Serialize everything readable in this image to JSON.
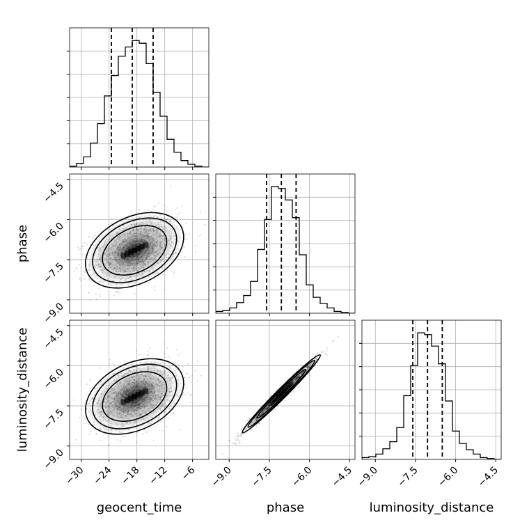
{
  "chart_data": {
    "type": "corner",
    "parameters": [
      "geocent_time",
      "phase",
      "luminosity_distance"
    ],
    "ranges": {
      "geocent_time": [
        -32.5,
        -2.5
      ],
      "phase": [
        -9.5,
        -4.3
      ],
      "luminosity_distance": [
        -9.5,
        -4.3
      ]
    },
    "ticks": {
      "geocent_time": {
        "values": [
          -30,
          -24,
          -18,
          -12,
          -6
        ],
        "labels": [
          "−30",
          "−24",
          "−18",
          "−12",
          "−6"
        ]
      },
      "phase": {
        "values": [
          -9.0,
          -7.5,
          -6.0,
          -4.5
        ],
        "labels": [
          "−9.0",
          "−7.5",
          "−6.0",
          "−4.5"
        ]
      },
      "luminosity_distance": {
        "values": [
          -9.0,
          -7.5,
          -6.0,
          -4.5
        ],
        "labels": [
          "−9.0",
          "−7.5",
          "−6.0",
          "−4.5"
        ]
      }
    },
    "quantiles": {
      "geocent_time": [
        -23.5,
        -19.0,
        -14.5
      ],
      "phase": [
        -7.6,
        -7.05,
        -6.5
      ],
      "luminosity_distance": [
        -7.6,
        -7.05,
        -6.5
      ]
    },
    "histograms": {
      "geocent_time": {
        "bin_edges": [
          -32.5,
          -31,
          -29.5,
          -28,
          -26.5,
          -25,
          -23.5,
          -22,
          -20.5,
          -19,
          -17.5,
          -16,
          -14.5,
          -13,
          -11.5,
          -10,
          -8.5,
          -7,
          -5.5,
          -4,
          -2.5
        ],
        "counts": [
          1,
          4,
          11,
          26,
          47,
          77,
          99,
          120,
          130,
          137,
          134,
          112,
          81,
          55,
          30,
          16,
          7,
          3,
          1,
          0
        ]
      },
      "phase": {
        "bin_edges": [
          -9.5,
          -9.24,
          -8.98,
          -8.72,
          -8.46,
          -8.2,
          -7.94,
          -7.68,
          -7.42,
          -7.16,
          -6.9,
          -6.64,
          -6.38,
          -6.12,
          -5.86,
          -5.6,
          -5.34,
          -5.08,
          -4.82,
          -4.56,
          -4.3
        ],
        "counts": [
          2,
          3,
          6,
          12,
          20,
          36,
          72,
          106,
          143,
          141,
          128,
          108,
          66,
          32,
          18,
          11,
          6,
          2,
          1,
          0
        ]
      },
      "luminosity_distance": {
        "bin_edges": [
          -9.5,
          -9.24,
          -8.98,
          -8.72,
          -8.46,
          -8.2,
          -7.94,
          -7.68,
          -7.42,
          -7.16,
          -6.9,
          -6.64,
          -6.38,
          -6.12,
          -5.86,
          -5.6,
          -5.34,
          -5.08,
          -4.82,
          -4.56,
          -4.3
        ],
        "counts": [
          2,
          3,
          6,
          12,
          20,
          36,
          72,
          106,
          143,
          141,
          128,
          108,
          66,
          32,
          18,
          11,
          6,
          2,
          1,
          0
        ]
      }
    },
    "pairs": [
      {
        "x": "geocent_time",
        "y": "phase",
        "mean": [
          -18.5,
          -7.15
        ],
        "sd": [
          4.5,
          0.6
        ],
        "corr": 0.35,
        "contours": [
          0.4,
          0.75,
          1.0
        ]
      },
      {
        "x": "geocent_time",
        "y": "luminosity_distance",
        "mean": [
          -18.5,
          -7.15
        ],
        "sd": [
          4.5,
          0.6
        ],
        "corr": 0.35,
        "contours": [
          0.4,
          0.75,
          1.0
        ]
      },
      {
        "x": "phase",
        "y": "luminosity_distance",
        "mean": [
          -7.05,
          -7.05
        ],
        "sd": [
          0.62,
          0.62
        ],
        "corr": 0.985,
        "contours": [
          0.35,
          0.75,
          1.0
        ]
      }
    ],
    "grid": true
  }
}
